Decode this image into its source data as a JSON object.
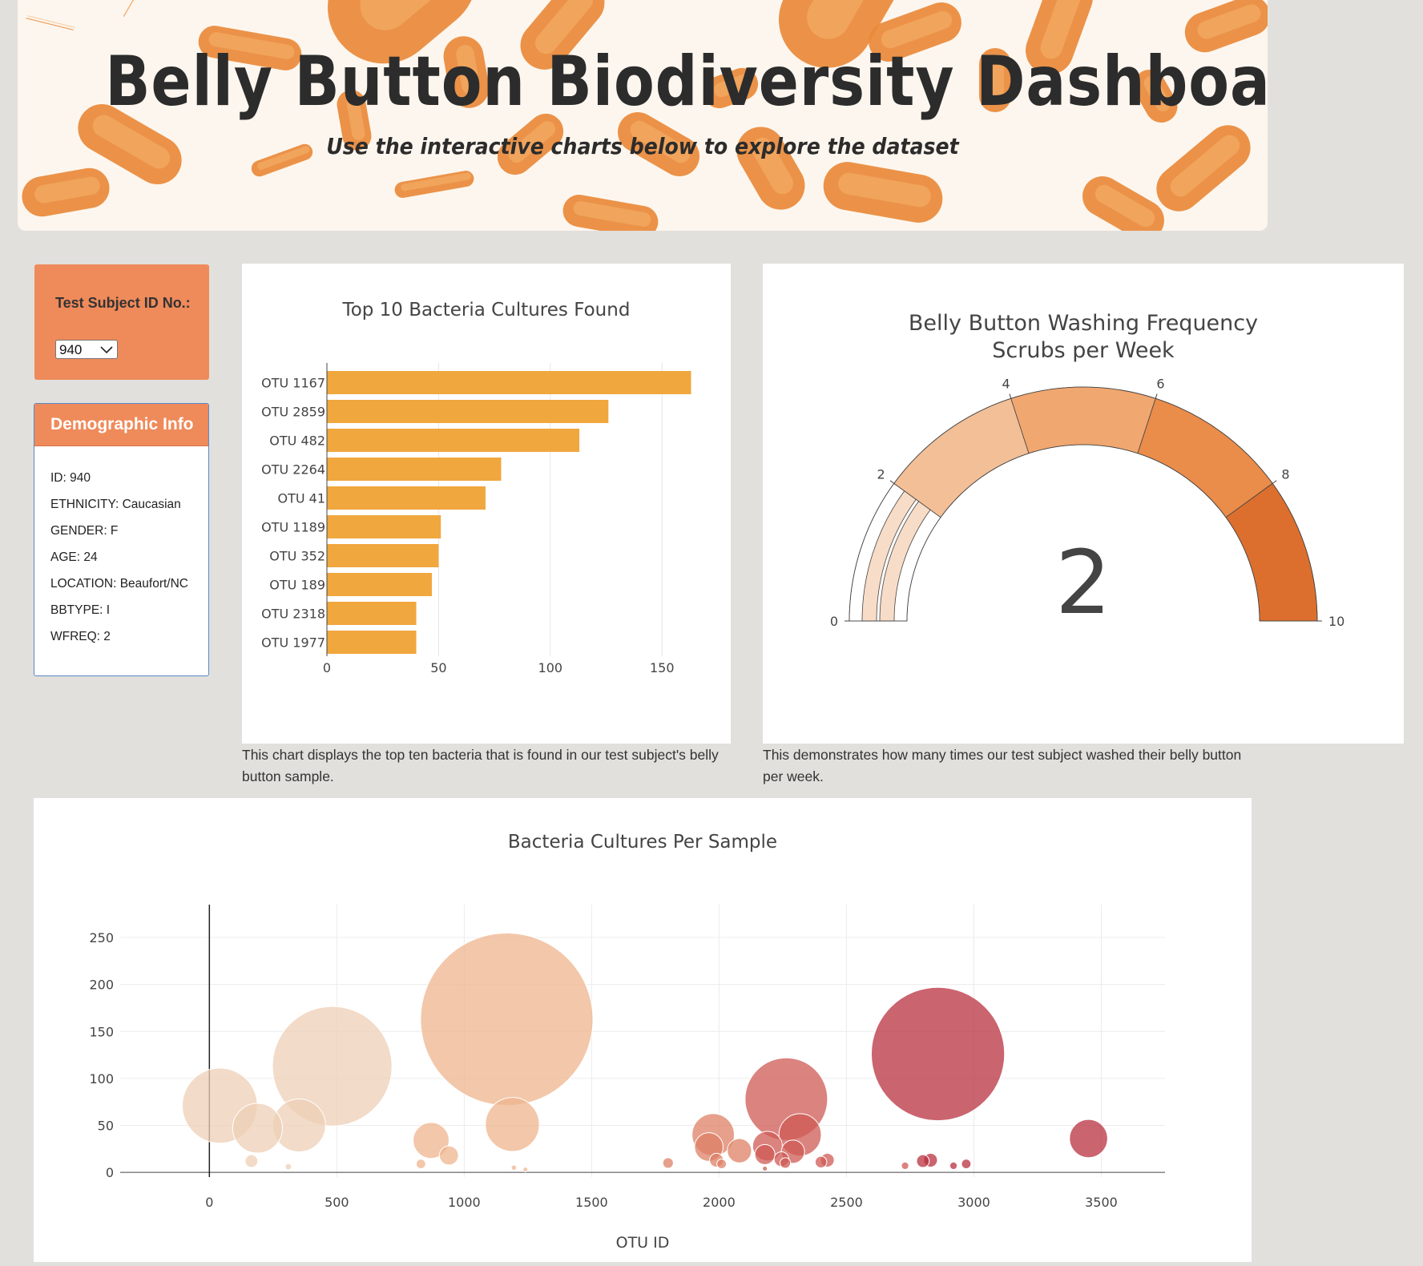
{
  "header": {
    "title": "Belly Button Biodiversity Dashboard",
    "subtitle": "Use the interactive charts below to explore the dataset"
  },
  "selector": {
    "label": "Test Subject ID No.:",
    "value": "940"
  },
  "demographics": {
    "title": "Demographic Info",
    "rows": [
      "ID: 940",
      "ETHNICITY: Caucasian",
      "GENDER: F",
      "AGE: 24",
      "LOCATION: Beaufort/NC",
      "BBTYPE: I",
      "WFREQ: 2"
    ]
  },
  "captions": {
    "bar": "This chart displays the top ten bacteria that is found in our test subject's belly button sample.",
    "gauge": "This demonstrates how many times our test subject washed their belly button per week."
  },
  "colors": {
    "bar": "#f0a73e",
    "accent": "#ef8a5a",
    "gauge_bands": [
      "#f7dcc7",
      "#f3bf97",
      "#f1a770",
      "#ea8c4a",
      "#dc6f2e"
    ]
  },
  "chart_data": [
    {
      "type": "bar",
      "orientation": "horizontal",
      "title": "Top 10 Bacteria Cultures Found",
      "categories": [
        "OTU 1167",
        "OTU 2859",
        "OTU 482",
        "OTU 2264",
        "OTU 41",
        "OTU 1189",
        "OTU 352",
        "OTU 189",
        "OTU 2318",
        "OTU 1977"
      ],
      "values": [
        163,
        126,
        113,
        78,
        71,
        51,
        50,
        47,
        40,
        40
      ],
      "xlim": [
        0,
        170
      ],
      "xticks": [
        0,
        50,
        100,
        150
      ],
      "grid": true
    },
    {
      "type": "gauge",
      "title": "Belly Button Washing Frequency",
      "subtitle": "Scrubs per Week",
      "value": 2,
      "range": [
        0,
        10
      ],
      "ticks": [
        0,
        2,
        4,
        6,
        8,
        10
      ],
      "bands": [
        [
          0,
          2
        ],
        [
          2,
          4
        ],
        [
          4,
          6
        ],
        [
          6,
          8
        ],
        [
          8,
          10
        ]
      ]
    },
    {
      "type": "scatter",
      "subtype": "bubble",
      "title": "Bacteria Cultures Per Sample",
      "xlabel": "OTU ID",
      "ylabel": "",
      "xlim": [
        -350,
        3750
      ],
      "ylim": [
        -5,
        285
      ],
      "xticks": [
        0,
        500,
        1000,
        1500,
        2000,
        2500,
        3000,
        3500
      ],
      "yticks": [
        0,
        50,
        100,
        150,
        200,
        250
      ],
      "grid": true,
      "points": [
        {
          "x": 41,
          "y": 71
        },
        {
          "x": 189,
          "y": 47
        },
        {
          "x": 352,
          "y": 50
        },
        {
          "x": 482,
          "y": 113
        },
        {
          "x": 165,
          "y": 12
        },
        {
          "x": 310,
          "y": 6
        },
        {
          "x": 870,
          "y": 34
        },
        {
          "x": 940,
          "y": 18
        },
        {
          "x": 830,
          "y": 9
        },
        {
          "x": 1167,
          "y": 163
        },
        {
          "x": 1189,
          "y": 51
        },
        {
          "x": 1195,
          "y": 5
        },
        {
          "x": 1800,
          "y": 10
        },
        {
          "x": 1977,
          "y": 40
        },
        {
          "x": 1960,
          "y": 27
        },
        {
          "x": 2080,
          "y": 23
        },
        {
          "x": 1990,
          "y": 13
        },
        {
          "x": 2010,
          "y": 9
        },
        {
          "x": 2190,
          "y": 28
        },
        {
          "x": 2180,
          "y": 19
        },
        {
          "x": 2264,
          "y": 78
        },
        {
          "x": 2318,
          "y": 40
        },
        {
          "x": 2290,
          "y": 22
        },
        {
          "x": 2245,
          "y": 14
        },
        {
          "x": 2260,
          "y": 10
        },
        {
          "x": 2400,
          "y": 11
        },
        {
          "x": 2425,
          "y": 13
        },
        {
          "x": 2730,
          "y": 7
        },
        {
          "x": 2800,
          "y": 12
        },
        {
          "x": 2830,
          "y": 13
        },
        {
          "x": 2859,
          "y": 126
        },
        {
          "x": 2920,
          "y": 7
        },
        {
          "x": 2970,
          "y": 9
        },
        {
          "x": 3450,
          "y": 36
        },
        {
          "x": 1240,
          "y": 3
        },
        {
          "x": 2180,
          "y": 4
        }
      ],
      "colorscale": [
        "#e8e8e8",
        "#eecfb6",
        "#efb48d",
        "#dd8066",
        "#cf5a54",
        "#b8303f"
      ]
    }
  ]
}
